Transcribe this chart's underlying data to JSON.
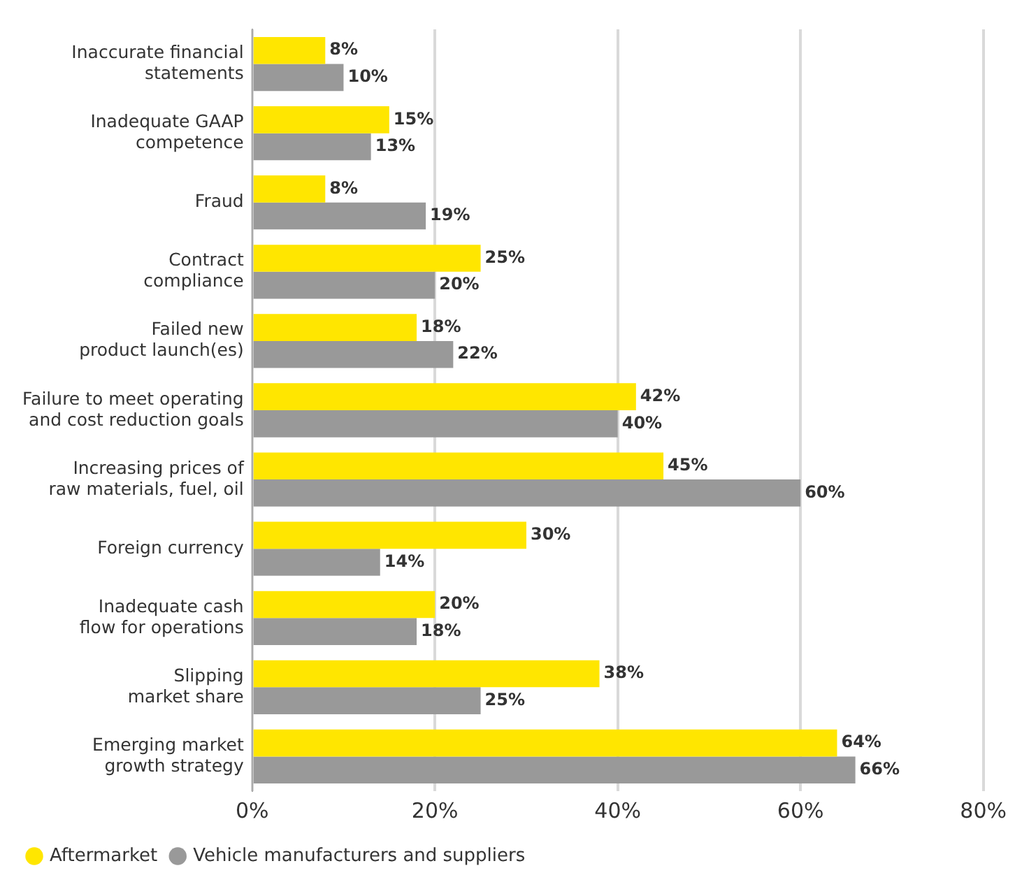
{
  "chart_data": {
    "type": "bar",
    "orientation": "horizontal",
    "categories": [
      "Inaccurate financial\nstatements",
      "Inadequate GAAP\ncompetence",
      "Fraud",
      "Contract\ncompliance",
      "Failed new\nproduct launch(es)",
      "Failure to meet operating\nand cost reduction goals",
      "Increasing prices of\nraw materials, fuel, oil",
      "Foreign currency",
      "Inadequate cash\nflow for operations",
      "Slipping\nmarket share",
      "Emerging market\ngrowth strategy"
    ],
    "series": [
      {
        "name": "Aftermarket",
        "color": "#ffe600",
        "values": [
          8,
          15,
          8,
          25,
          18,
          42,
          45,
          30,
          20,
          38,
          64
        ],
        "value_labels": [
          "8%",
          "15%",
          "8%",
          "25%",
          "18%",
          "42%",
          "45%",
          "30%",
          "20%",
          "38%",
          "64%"
        ]
      },
      {
        "name": "Vehicle manufacturers and suppliers",
        "color": "#999999",
        "values": [
          10,
          13,
          19,
          20,
          22,
          40,
          60,
          14,
          18,
          25,
          66
        ],
        "value_labels": [
          "10%",
          "13%",
          "19%",
          "20%",
          "22%",
          "40%",
          "60%",
          "14%",
          "18%",
          "25%",
          "66%"
        ]
      }
    ],
    "xlim": [
      0,
      80
    ],
    "xticks": [
      {
        "value": 0,
        "label": "0%"
      },
      {
        "value": 20,
        "label": "20%"
      },
      {
        "value": 40,
        "label": "40%"
      },
      {
        "value": 60,
        "label": "60%"
      },
      {
        "value": 80,
        "label": "80%"
      }
    ],
    "grid": "x",
    "legend": "bottom left"
  }
}
